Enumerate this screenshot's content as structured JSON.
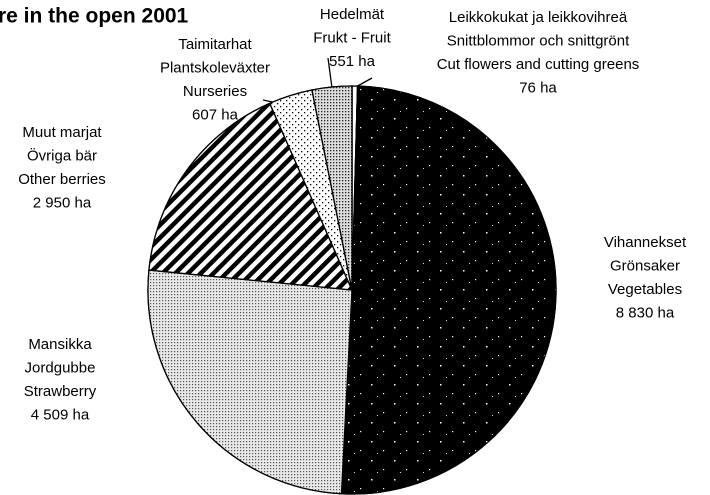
{
  "chart_data": {
    "type": "pie",
    "title": "re in the open 2001",
    "categories": [
      [
        "Leikkokukat ja leikkovihreä",
        "Snittblommor och snittgrönt",
        "Cut flowers and cutting greens"
      ],
      [
        "Vihannekset",
        "Grönsaker",
        "Vegetables"
      ],
      [
        "Mansikka",
        "Jordgubbe",
        "Strawberry"
      ],
      [
        "Muut marjat",
        "Övriga bär",
        "Other berries"
      ],
      [
        "Taimitarhat",
        "Plantskoleväxter",
        "Nurseries"
      ],
      [
        "Hedelmät",
        "Frukt - Fruit"
      ]
    ],
    "values": [
      76,
      8830,
      4509,
      2950,
      607,
      551
    ],
    "value_labels": [
      "76 ha",
      "8 830 ha",
      "4 509 ha",
      "2 950 ha",
      "607 ha",
      "551 ha"
    ],
    "colors": [
      "#ffffff",
      "#000000",
      "#d0d0d0",
      "#ffffff",
      "#ffffff",
      "#c8c8c8"
    ]
  }
}
